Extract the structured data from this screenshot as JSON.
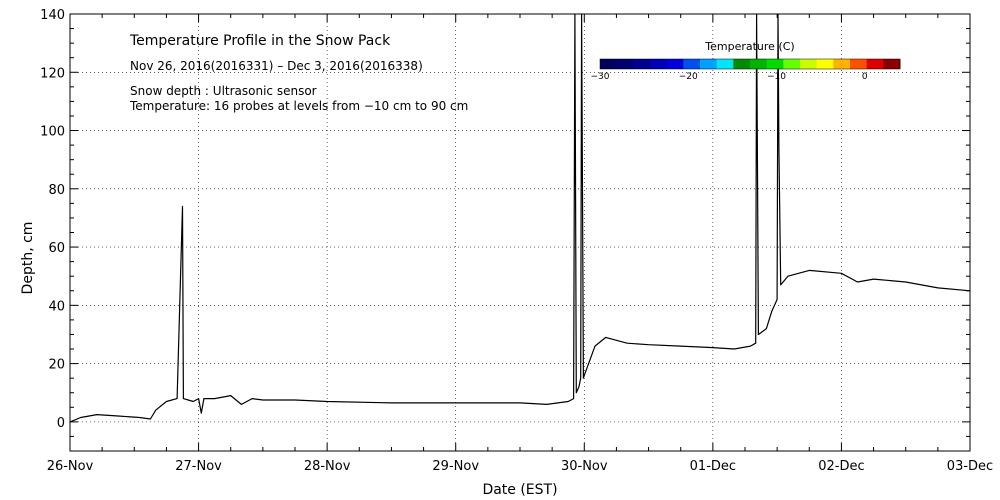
{
  "chart_data": {
    "type": "line",
    "title": "Temperature Profile in the Snow Pack",
    "subtitle": "Nov 26, 2016(2016331) – Dec  3, 2016(2016338)",
    "notes": [
      "Snow depth : Ultrasonic sensor",
      "Temperature: 16 probes at levels from −10 cm to 90 cm"
    ],
    "xlabel": "Date (EST)",
    "ylabel": "Depth, cm",
    "xlim": [
      "2016-11-26T00:00",
      "2016-12-03T00:00"
    ],
    "ylim": [
      -10,
      140
    ],
    "xtick_labels": [
      "26-Nov",
      "27-Nov",
      "28-Nov",
      "29-Nov",
      "30-Nov",
      "01-Dec",
      "02-Dec",
      "03-Dec"
    ],
    "ytick_labels": [
      "0",
      "20",
      "40",
      "60",
      "80",
      "100",
      "120",
      "140"
    ],
    "yticks": [
      0,
      20,
      40,
      60,
      80,
      100,
      120,
      140
    ],
    "grid": "dotted",
    "series": [
      {
        "name": "",
        "color": "#000000",
        "points": [
          [
            "2016-11-26T00:00",
            0
          ],
          [
            "2016-11-26T02:00",
            1.5
          ],
          [
            "2016-11-26T05:00",
            2.5
          ],
          [
            "2016-11-26T09:00",
            2
          ],
          [
            "2016-11-26T13:00",
            1.5
          ],
          [
            "2016-11-26T15:00",
            1
          ],
          [
            "2016-11-26T16:00",
            4
          ],
          [
            "2016-11-26T18:00",
            7
          ],
          [
            "2016-11-26T20:00",
            8
          ],
          [
            "2016-11-26T21:00",
            74
          ],
          [
            "2016-11-26T21:10",
            8
          ],
          [
            "2016-11-26T23:00",
            7
          ],
          [
            "2016-11-27T00:00",
            8
          ],
          [
            "2016-11-27T00:30",
            3
          ],
          [
            "2016-11-27T01:00",
            8
          ],
          [
            "2016-11-27T03:00",
            8
          ],
          [
            "2016-11-27T06:00",
            9
          ],
          [
            "2016-11-27T08:00",
            6
          ],
          [
            "2016-11-27T10:00",
            8
          ],
          [
            "2016-11-27T12:00",
            7.5
          ],
          [
            "2016-11-27T18:00",
            7.5
          ],
          [
            "2016-11-28T00:00",
            7
          ],
          [
            "2016-11-28T12:00",
            6.5
          ],
          [
            "2016-11-29T00:00",
            6.5
          ],
          [
            "2016-11-29T12:00",
            6.5
          ],
          [
            "2016-11-29T17:00",
            6
          ],
          [
            "2016-11-29T21:00",
            7
          ],
          [
            "2016-11-29T22:00",
            8
          ],
          [
            "2016-11-29T22:15",
            140
          ],
          [
            "2016-11-29T22:30",
            10
          ],
          [
            "2016-11-29T23:00",
            12
          ],
          [
            "2016-11-29T23:20",
            15
          ],
          [
            "2016-11-29T23:30",
            140
          ],
          [
            "2016-11-29T23:40",
            78
          ],
          [
            "2016-11-29T23:50",
            15
          ],
          [
            "2016-11-30T00:00",
            16
          ],
          [
            "2016-11-30T02:00",
            26
          ],
          [
            "2016-11-30T04:00",
            29
          ],
          [
            "2016-11-30T06:00",
            28
          ],
          [
            "2016-11-30T08:00",
            27
          ],
          [
            "2016-11-30T12:00",
            26.5
          ],
          [
            "2016-11-30T18:00",
            26
          ],
          [
            "2016-12-01T00:00",
            25.5
          ],
          [
            "2016-12-01T04:00",
            25
          ],
          [
            "2016-12-01T07:00",
            26
          ],
          [
            "2016-12-01T08:00",
            27
          ],
          [
            "2016-12-01T08:10",
            140
          ],
          [
            "2016-12-01T08:20",
            86
          ],
          [
            "2016-12-01T08:30",
            30
          ],
          [
            "2016-12-01T10:00",
            32
          ],
          [
            "2016-12-01T11:00",
            38
          ],
          [
            "2016-12-01T12:00",
            42
          ],
          [
            "2016-12-01T12:10",
            140
          ],
          [
            "2016-12-01T12:20",
            94
          ],
          [
            "2016-12-01T12:40",
            47
          ],
          [
            "2016-12-01T14:00",
            50
          ],
          [
            "2016-12-01T18:00",
            52
          ],
          [
            "2016-12-02T00:00",
            51
          ],
          [
            "2016-12-02T03:00",
            48
          ],
          [
            "2016-12-02T06:00",
            49
          ],
          [
            "2016-12-02T12:00",
            48
          ],
          [
            "2016-12-02T18:00",
            46
          ],
          [
            "2016-12-03T00:00",
            45
          ]
        ]
      }
    ],
    "colorbar": {
      "label": "Temperature (C)",
      "ticks": [
        "−30",
        "−20",
        "−10",
        "0"
      ],
      "tick_values": [
        -30,
        -20,
        -10,
        0
      ],
      "range": [
        -30,
        4
      ],
      "colors": [
        "#00005a",
        "#00006e",
        "#000090",
        "#0000b4",
        "#0000dc",
        "#0050f0",
        "#00a0ff",
        "#00e6ff",
        "#008c00",
        "#00b400",
        "#00dc00",
        "#64ff00",
        "#c8ff00",
        "#ffff00",
        "#ffb400",
        "#ff5000",
        "#dc0000",
        "#8c0000"
      ]
    }
  }
}
